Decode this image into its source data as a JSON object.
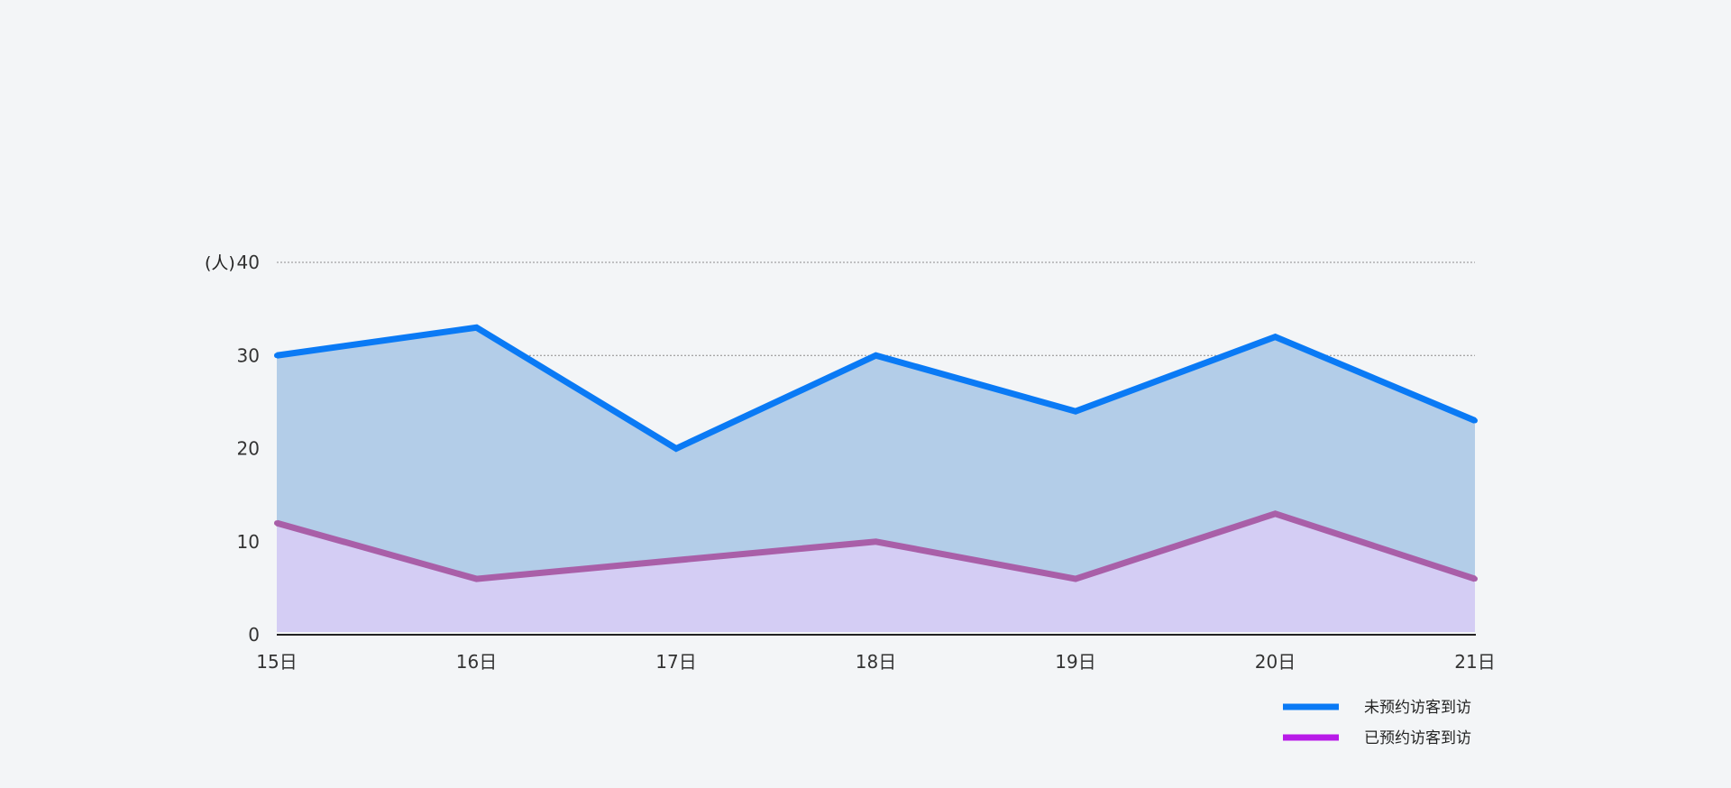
{
  "chart_data": {
    "type": "area",
    "categories": [
      "15日",
      "16日",
      "17日",
      "18日",
      "19日",
      "20日",
      "21日"
    ],
    "ylim": [
      0,
      40
    ],
    "yticks": [
      0,
      10,
      20,
      30,
      40
    ],
    "y_unit": "(人)",
    "grid": true,
    "legend_position": "bottom-right",
    "series": [
      {
        "name": "未预约访客到访",
        "values": [
          30,
          33,
          20,
          30,
          24,
          32,
          23
        ],
        "line_color": "#0a7af5",
        "fill_color": "#b3cde8"
      },
      {
        "name": "已预约访客到访",
        "values": [
          12,
          6,
          8,
          10,
          6,
          13,
          6
        ],
        "line_color": "#a95fa8",
        "fill_color": "#d4cdf4",
        "legend_color": "#b81be8"
      }
    ]
  }
}
